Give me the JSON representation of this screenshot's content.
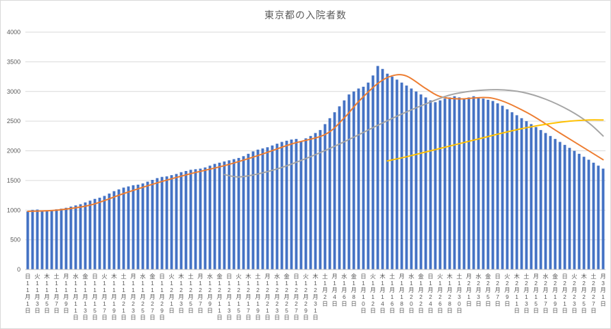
{
  "chart_data": {
    "type": "combo",
    "title": "東京都の入院者数",
    "ylim": [
      0,
      4000
    ],
    "ytick_step": 500,
    "x_tick_every": 2,
    "grid": true,
    "legend": "none",
    "colors": {
      "grid": "#d9d9d9",
      "axis": "#bfbfbf",
      "text": "#595959",
      "bar": "#4472C4",
      "orange": "#ED7D31",
      "gray": "#A5A5A5",
      "yellow": "#FFC000"
    },
    "series": [
      {
        "name": "hospitalized-bars",
        "type": "bar",
        "color": "#4472C4",
        "values": [
          980,
          1005,
          1010,
          995,
          990,
          1000,
          1015,
          1025,
          1040,
          1060,
          1080,
          1100,
          1130,
          1160,
          1190,
          1210,
          1240,
          1280,
          1320,
          1350,
          1380,
          1400,
          1420,
          1430,
          1450,
          1480,
          1510,
          1540,
          1560,
          1570,
          1590,
          1610,
          1640,
          1660,
          1680,
          1690,
          1700,
          1720,
          1750,
          1780,
          1800,
          1820,
          1840,
          1860,
          1880,
          1910,
          1950,
          1990,
          2020,
          2040,
          2060,
          2090,
          2120,
          2150,
          2170,
          2190,
          2200,
          2160,
          2210,
          2250,
          2300,
          2350,
          2450,
          2550,
          2650,
          2750,
          2850,
          2950,
          3000,
          3050,
          3080,
          3150,
          3270,
          3430,
          3380,
          3300,
          3250,
          3200,
          3150,
          3100,
          3050,
          3000,
          2950,
          2900,
          2850,
          2820,
          2850,
          2880,
          2900,
          2920,
          2900,
          2880,
          2900,
          2920,
          2900,
          2880,
          2860,
          2840,
          2800,
          2760,
          2700,
          2650,
          2600,
          2550,
          2500,
          2450,
          2400,
          2350,
          2300,
          2250,
          2200,
          2150,
          2100,
          2050,
          2000,
          1950,
          1900,
          1850,
          1800,
          1750,
          1700
        ]
      },
      {
        "name": "moving-average-line-orange",
        "type": "line",
        "color": "#ED7D31",
        "points": [
          [
            0,
            980
          ],
          [
            6,
            1000
          ],
          [
            13,
            1085
          ],
          [
            20,
            1280
          ],
          [
            27,
            1460
          ],
          [
            34,
            1615
          ],
          [
            41,
            1750
          ],
          [
            48,
            1920
          ],
          [
            55,
            2115
          ],
          [
            62,
            2275
          ],
          [
            66,
            2555
          ],
          [
            69,
            2830
          ],
          [
            73,
            3135
          ],
          [
            76,
            3265
          ],
          [
            79,
            3260
          ],
          [
            83,
            3050
          ],
          [
            86,
            2915
          ],
          [
            90,
            2875
          ],
          [
            97,
            2885
          ],
          [
            104,
            2650
          ],
          [
            111,
            2300
          ],
          [
            118,
            1950
          ],
          [
            120,
            1850
          ]
        ]
      },
      {
        "name": "trend-line-gray",
        "type": "line",
        "color": "#A5A5A5",
        "points": [
          [
            41,
            1600
          ],
          [
            44,
            1560
          ],
          [
            48,
            1610
          ],
          [
            53,
            1720
          ],
          [
            58,
            1870
          ],
          [
            63,
            2040
          ],
          [
            68,
            2230
          ],
          [
            73,
            2430
          ],
          [
            78,
            2620
          ],
          [
            83,
            2790
          ],
          [
            88,
            2940
          ],
          [
            93,
            3010
          ],
          [
            98,
            3030
          ],
          [
            103,
            2990
          ],
          [
            108,
            2870
          ],
          [
            113,
            2680
          ],
          [
            117,
            2470
          ],
          [
            120,
            2250
          ]
        ]
      },
      {
        "name": "trend-line-yellow",
        "type": "line",
        "color": "#FFC000",
        "points": [
          [
            75,
            1830
          ],
          [
            79,
            1900
          ],
          [
            84,
            2000
          ],
          [
            89,
            2100
          ],
          [
            94,
            2200
          ],
          [
            99,
            2300
          ],
          [
            104,
            2390
          ],
          [
            109,
            2460
          ],
          [
            113,
            2500
          ],
          [
            117,
            2520
          ],
          [
            120,
            2520
          ]
        ]
      }
    ],
    "y_tick_labels": [
      "0",
      "500",
      "1000",
      "1500",
      "2000",
      "2500",
      "3000",
      "3500",
      "4000"
    ],
    "x_tick_labels": [
      [
        "日",
        "11月1日"
      ],
      [
        "火",
        "11月3日"
      ],
      [
        "木",
        "11月5日"
      ],
      [
        "土",
        "11月7日"
      ],
      [
        "月",
        "11月9日"
      ],
      [
        "水",
        "11月11日"
      ],
      [
        "金",
        "11月13日"
      ],
      [
        "日",
        "11月15日"
      ],
      [
        "火",
        "11月17日"
      ],
      [
        "木",
        "11月19日"
      ],
      [
        "土",
        "11月21日"
      ],
      [
        "月",
        "11月23日"
      ],
      [
        "水",
        "11月25日"
      ],
      [
        "金",
        "11月27日"
      ],
      [
        "日",
        "11月29日"
      ],
      [
        "火",
        "12月1日"
      ],
      [
        "木",
        "12月3日"
      ],
      [
        "土",
        "12月5日"
      ],
      [
        "月",
        "12月7日"
      ],
      [
        "水",
        "12月9日"
      ],
      [
        "金",
        "12月11日"
      ],
      [
        "日",
        "12月13日"
      ],
      [
        "火",
        "12月15日"
      ],
      [
        "木",
        "12月17日"
      ],
      [
        "土",
        "12月19日"
      ],
      [
        "月",
        "12月21日"
      ],
      [
        "水",
        "12月23日"
      ],
      [
        "金",
        "12月25日"
      ],
      [
        "日",
        "12月27日"
      ],
      [
        "火",
        "12月29日"
      ],
      [
        "木",
        "12月31日"
      ],
      [
        "土",
        "1月2日"
      ],
      [
        "月",
        "1月4日"
      ],
      [
        "水",
        "1月6日"
      ],
      [
        "金",
        "1月8日"
      ],
      [
        "日",
        "1月10日"
      ],
      [
        "火",
        "1月12日"
      ],
      [
        "木",
        "1月14日"
      ],
      [
        "土",
        "1月16日"
      ],
      [
        "月",
        "1月18日"
      ],
      [
        "水",
        "1月20日"
      ],
      [
        "金",
        "1月22日"
      ],
      [
        "日",
        "1月24日"
      ],
      [
        "火",
        "1月26日"
      ],
      [
        "木",
        "1月28日"
      ],
      [
        "土",
        "1月30日"
      ],
      [
        "月",
        "2月1日"
      ],
      [
        "水",
        "2月3日"
      ],
      [
        "金",
        "2月5日"
      ],
      [
        "日",
        "2月7日"
      ],
      [
        "火",
        "2月9日"
      ],
      [
        "木",
        "2月11日"
      ],
      [
        "土",
        "2月13日"
      ],
      [
        "月",
        "2月15日"
      ],
      [
        "水",
        "2月17日"
      ],
      [
        "金",
        "2月19日"
      ],
      [
        "日",
        "2月21日"
      ],
      [
        "火",
        "2月23日"
      ],
      [
        "木",
        "2月25日"
      ],
      [
        "土",
        "2月27日"
      ],
      [
        "月",
        "3月1日"
      ]
    ]
  }
}
